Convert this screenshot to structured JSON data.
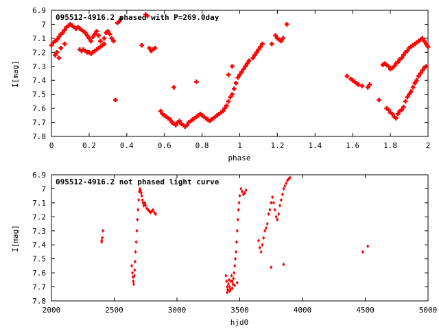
{
  "chart_data": [
    {
      "type": "scatter",
      "title": "095512-4916.2 phased with P=269.0day",
      "xlabel": "phase",
      "ylabel": "I[mag]",
      "xlim": [
        0,
        2
      ],
      "ylim": [
        6.9,
        7.8
      ],
      "y_inverted": true,
      "grid": false,
      "marker_color": "#ff0000",
      "x_ticks": [
        "0",
        "0.2",
        "0.4",
        "0.6",
        "0.8",
        "1",
        "1.2",
        "1.4",
        "1.6",
        "1.8",
        "2"
      ],
      "y_ticks": [
        "6.9",
        "7",
        "7.1",
        "7.2",
        "7.3",
        "7.4",
        "7.5",
        "7.6",
        "7.7",
        "7.8"
      ],
      "series": [
        {
          "x": [
            0.0,
            0.01,
            0.02,
            0.03,
            0.04,
            0.05,
            0.06,
            0.07,
            0.08,
            0.09,
            0.1,
            0.11,
            0.12,
            0.13,
            0.14,
            0.15,
            0.16,
            0.17,
            0.18,
            0.19,
            0.2,
            0.21,
            0.22,
            0.23,
            0.24,
            0.25,
            0.26,
            0.27,
            0.28,
            0.29,
            0.3,
            0.31,
            0.32,
            0.33,
            0.35,
            0.36,
            0.37,
            0.03,
            0.05,
            0.07,
            0.15,
            0.16,
            0.17,
            0.18,
            0.19,
            0.2,
            0.21,
            0.22,
            0.23,
            0.24,
            0.25,
            0.26,
            0.27,
            0.28,
            0.02,
            0.04,
            0.34,
            0.48,
            0.5,
            0.51,
            0.52,
            0.53,
            0.54,
            0.55,
            0.58,
            0.59,
            0.6,
            0.61,
            0.62,
            0.63,
            0.64,
            0.65,
            0.66,
            0.67,
            0.68,
            0.69,
            0.7,
            0.71,
            0.72,
            0.73,
            0.74,
            0.75,
            0.76,
            0.77,
            0.78,
            0.79,
            0.8,
            0.81,
            0.82,
            0.83,
            0.84,
            0.85,
            0.86,
            0.87,
            0.88,
            0.89,
            0.9,
            0.91,
            0.92,
            0.93,
            0.94,
            0.95,
            0.96,
            0.97,
            0.98,
            0.99,
            1.0,
            1.01,
            1.02,
            1.03,
            1.04,
            1.05,
            1.07,
            1.08,
            1.09,
            1.1,
            1.11,
            1.12,
            0.65,
            0.77,
            0.94,
            0.96,
            1.17,
            1.19,
            1.2,
            1.21,
            1.22,
            1.23,
            1.25,
            1.57,
            1.59,
            1.6,
            1.61,
            1.62,
            1.63,
            1.65,
            1.68,
            1.69,
            1.74,
            1.76,
            1.77,
            1.78,
            1.79,
            1.8,
            1.81,
            1.82,
            1.83,
            1.84,
            1.85,
            1.86,
            1.87,
            1.88,
            1.89,
            1.9,
            1.91,
            1.92,
            1.93,
            1.94,
            1.95,
            1.96,
            1.97,
            1.98,
            1.99,
            2.0,
            1.78,
            1.79,
            1.8,
            1.81,
            1.82,
            1.83,
            1.84,
            1.85,
            1.86,
            1.87,
            1.88,
            1.89,
            1.9,
            1.91,
            1.92,
            1.93,
            1.94,
            1.95,
            1.96,
            1.97,
            1.98,
            1.99
          ],
          "y": [
            7.15,
            7.13,
            7.12,
            7.11,
            7.09,
            7.07,
            7.06,
            7.04,
            7.02,
            7.01,
            7.0,
            7.01,
            7.02,
            7.03,
            7.02,
            7.03,
            7.04,
            7.05,
            7.06,
            7.08,
            7.1,
            7.12,
            7.09,
            7.07,
            7.05,
            7.08,
            7.12,
            7.15,
            7.1,
            7.06,
            7.05,
            7.07,
            7.1,
            7.12,
            6.99,
            6.98,
            6.96,
            7.2,
            7.17,
            7.14,
            7.18,
            7.19,
            7.18,
            7.19,
            7.2,
            7.2,
            7.21,
            7.2,
            7.19,
            7.18,
            7.17,
            7.16,
            7.15,
            7.14,
            7.22,
            7.24,
            7.54,
            7.15,
            6.93,
            6.94,
            7.17,
            7.19,
            7.18,
            7.17,
            7.62,
            7.64,
            7.65,
            7.66,
            7.67,
            7.68,
            7.7,
            7.71,
            7.72,
            7.7,
            7.69,
            7.71,
            7.72,
            7.73,
            7.72,
            7.7,
            7.69,
            7.68,
            7.67,
            7.66,
            7.65,
            7.64,
            7.65,
            7.66,
            7.67,
            7.68,
            7.69,
            7.68,
            7.67,
            7.66,
            7.65,
            7.64,
            7.63,
            7.62,
            7.6,
            7.58,
            7.55,
            7.52,
            7.5,
            7.46,
            7.42,
            7.38,
            7.36,
            7.34,
            7.32,
            7.3,
            7.28,
            7.26,
            7.24,
            7.22,
            7.2,
            7.18,
            7.16,
            7.14,
            7.45,
            7.41,
            7.36,
            7.3,
            7.14,
            7.08,
            7.1,
            7.11,
            7.12,
            7.1,
            7.0,
            7.37,
            7.39,
            7.4,
            7.41,
            7.42,
            7.43,
            7.44,
            7.45,
            7.43,
            7.54,
            7.29,
            7.28,
            7.29,
            7.3,
            7.32,
            7.31,
            7.3,
            7.28,
            7.27,
            7.25,
            7.24,
            7.22,
            7.2,
            7.19,
            7.17,
            7.16,
            7.15,
            7.14,
            7.13,
            7.12,
            7.11,
            7.1,
            7.12,
            7.14,
            7.16,
            7.6,
            7.61,
            7.63,
            7.64,
            7.66,
            7.67,
            7.64,
            7.62,
            7.61,
            7.59,
            7.55,
            7.52,
            7.5,
            7.48,
            7.45,
            7.42,
            7.4,
            7.37,
            7.35,
            7.33,
            7.31,
            7.3
          ]
        }
      ]
    },
    {
      "type": "scatter",
      "title": "095512-4916.2 not phased light curve",
      "xlabel": "hjd0",
      "ylabel": "I[mag]",
      "xlim": [
        2000,
        5000
      ],
      "ylim": [
        6.9,
        7.8
      ],
      "y_inverted": true,
      "grid": false,
      "marker_color": "#ff0000",
      "x_ticks": [
        "2000",
        "2500",
        "3000",
        "3500",
        "4000",
        "4500",
        "5000"
      ],
      "y_ticks": [
        "6.9",
        "7",
        "7.1",
        "7.2",
        "7.3",
        "7.4",
        "7.5",
        "7.6",
        "7.7",
        "7.8"
      ],
      "series": [
        {
          "x": [
            2400,
            2405,
            2410,
            2400,
            2640,
            2645,
            2650,
            2652,
            2655,
            2660,
            2663,
            2666,
            2670,
            2675,
            2680,
            2685,
            2690,
            2695,
            2700,
            2705,
            2710,
            2715,
            2720,
            2725,
            2730,
            2735,
            2740,
            2745,
            2750,
            2760,
            2770,
            2780,
            2790,
            2800,
            2810,
            2820,
            2830,
            3390,
            3395,
            3400,
            3405,
            3410,
            3415,
            3420,
            3425,
            3430,
            3435,
            3440,
            3445,
            3450,
            3455,
            3460,
            3465,
            3470,
            3475,
            3480,
            3485,
            3490,
            3495,
            3500,
            3510,
            3520,
            3530,
            3540,
            3550,
            3650,
            3660,
            3670,
            3680,
            3690,
            3700,
            3710,
            3720,
            3730,
            3740,
            3750,
            3760,
            3770,
            3780,
            3790,
            3800,
            3810,
            3820,
            3830,
            3840,
            3850,
            3860,
            3870,
            3880,
            3890,
            3900,
            3750,
            3850,
            4480,
            4520,
            3400,
            3420,
            3440,
            3460,
            3480
          ],
          "y": [
            7.37,
            7.35,
            7.3,
            7.38,
            7.55,
            7.6,
            7.63,
            7.66,
            7.68,
            7.62,
            7.58,
            7.52,
            7.45,
            7.38,
            7.3,
            7.22,
            7.15,
            7.08,
            7.02,
            7.0,
            7.01,
            7.03,
            7.05,
            7.08,
            7.1,
            7.12,
            7.11,
            7.1,
            7.12,
            7.14,
            7.15,
            7.16,
            7.17,
            7.16,
            7.15,
            7.17,
            7.18,
            7.62,
            7.66,
            7.7,
            7.72,
            7.68,
            7.65,
            7.7,
            7.72,
            7.66,
            7.62,
            7.66,
            7.68,
            7.64,
            7.6,
            7.55,
            7.5,
            7.45,
            7.38,
            7.3,
            7.22,
            7.15,
            7.1,
            7.05,
            7.0,
            7.02,
            7.04,
            7.03,
            7.01,
            7.37,
            7.42,
            7.45,
            7.4,
            7.35,
            7.3,
            7.28,
            7.25,
            7.18,
            7.15,
            7.1,
            7.06,
            7.1,
            7.15,
            7.2,
            7.22,
            7.18,
            7.12,
            7.08,
            7.04,
            7.0,
            6.98,
            6.96,
            6.94,
            6.93,
            6.92,
            7.56,
            7.54,
            7.45,
            7.41,
            7.74,
            7.73,
            7.71,
            7.69,
            7.67
          ]
        }
      ]
    }
  ]
}
